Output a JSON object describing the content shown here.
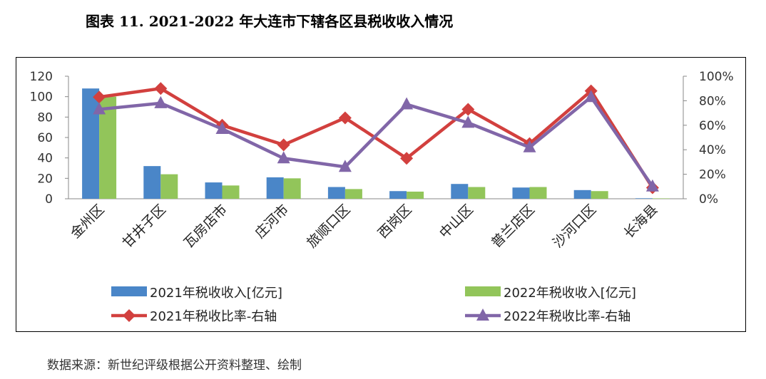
{
  "title": "图表 11. 2021-2022 年大连市下辖各区县税收收入情况",
  "source": "数据来源：新世纪评级根据公开资料整理、绘制",
  "colors": {
    "bar2021": "#4A86C8",
    "bar2022": "#92C55A",
    "line2021": "#D2403E",
    "line2022": "#8166A8"
  },
  "chart_data": {
    "type": "bar+line",
    "categories": [
      "金州区",
      "甘井子区",
      "瓦房店市",
      "庄河市",
      "旅顺口区",
      "西岗区",
      "中山区",
      "普兰店区",
      "沙河口区",
      "长海县"
    ],
    "left_axis": {
      "min": 0,
      "max": 120,
      "step": 20,
      "ticks": [
        "0",
        "20",
        "40",
        "60",
        "80",
        "100",
        "120"
      ]
    },
    "right_axis": {
      "min": 0,
      "max": 1,
      "step": 0.2,
      "ticks": [
        "0%",
        "20%",
        "40%",
        "60%",
        "80%",
        "100%"
      ]
    },
    "series": [
      {
        "name": "2021年税收收入[亿元]",
        "type": "bar",
        "axis": "left",
        "values": [
          108,
          32,
          16,
          21,
          11.5,
          7.5,
          14.5,
          11,
          8.5,
          0.5
        ]
      },
      {
        "name": "2022年税收收入[亿元]",
        "type": "bar",
        "axis": "left",
        "values": [
          100,
          24,
          13,
          20,
          9.5,
          7,
          11.5,
          11.5,
          7.5,
          0.4
        ]
      },
      {
        "name": "2021年税收比率-右轴",
        "type": "line",
        "marker": "diamond",
        "axis": "right",
        "values": [
          0.83,
          0.9,
          0.6,
          0.44,
          0.66,
          0.33,
          0.73,
          0.45,
          0.88,
          0.09
        ]
      },
      {
        "name": "2022年税收比率-右轴",
        "type": "line",
        "marker": "triangle",
        "axis": "right",
        "values": [
          0.73,
          0.78,
          0.57,
          0.33,
          0.26,
          0.77,
          0.62,
          0.42,
          0.83,
          0.1
        ]
      }
    ]
  }
}
